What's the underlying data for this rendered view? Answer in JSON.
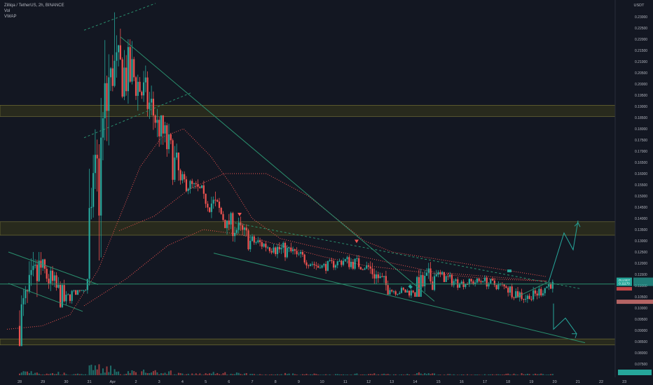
{
  "header": {
    "symbol_line": "Zilliqa / TetherUS, 2h, BINANCE",
    "indicator_1": "Vol",
    "indicator_2": "VWAP"
  },
  "price_scale": {
    "currency": "USDT",
    "labels": [
      "0.21500",
      "0.21000",
      "0.20500",
      "0.20000",
      "0.19500",
      "0.19000",
      "0.18500",
      "0.18000",
      "0.17500",
      "0.17000",
      "0.16500",
      "0.16000",
      "0.15500",
      "0.15000",
      "0.14500",
      "0.14000",
      "0.13500",
      "0.13000",
      "0.12500",
      "0.12000",
      "0.11500",
      "0.11000",
      "0.10500",
      "0.10000",
      "0.09500",
      "0.09000",
      "0.08500",
      "0.08000",
      "0.07500"
    ],
    "extra_labels": [
      "0.23000",
      "0.22500",
      "0.22000",
      "0.21500"
    ],
    "price_tag": "0.11170",
    "price_tag_left": "ZILUSDT",
    "vwap_tag": "0.10560"
  },
  "time_scale": {
    "labels": [
      "28",
      "29",
      "30",
      "31",
      "Apr",
      "2",
      "3",
      "4",
      "5",
      "6",
      "7",
      "8",
      "9",
      "10",
      "11",
      "12",
      "13",
      "14",
      "15",
      "16",
      "17",
      "18",
      "19",
      "20",
      "21",
      "22",
      "23"
    ]
  },
  "colors": {
    "background": "#131722",
    "up": "#26a69a",
    "down": "#ef5350",
    "zone_fill": "#3a3a1a",
    "zone_border": "#7d7a3a",
    "trendline": "#2a8f6e",
    "vwap": "#ef5350",
    "projection": "#26a69a"
  },
  "chart_data": {
    "type": "candlestick",
    "symbol": "Zilliqa / TetherUS",
    "interval": "2h",
    "exchange": "BINANCE",
    "y_range": [
      0.07,
      0.235
    ],
    "x_range_days": [
      "28",
      "23"
    ],
    "zones": [
      {
        "low": 0.1855,
        "high": 0.1905
      },
      {
        "low": 0.1325,
        "high": 0.1385
      },
      {
        "low": 0.0835,
        "high": 0.0862
      }
    ],
    "key_prices": {
      "last": 0.1117,
      "vwap_tag": 0.1056
    },
    "candles_by_day": [
      {
        "day": "28",
        "o": 0.092,
        "h": 0.125,
        "l": 0.083,
        "c": 0.118
      },
      {
        "day": "29",
        "o": 0.118,
        "h": 0.122,
        "l": 0.1,
        "c": 0.103
      },
      {
        "day": "30",
        "o": 0.103,
        "h": 0.108,
        "l": 0.098,
        "c": 0.113
      },
      {
        "day": "31",
        "o": 0.113,
        "h": 0.223,
        "l": 0.11,
        "c": 0.207
      },
      {
        "day": "Apr",
        "o": 0.207,
        "h": 0.232,
        "l": 0.186,
        "c": 0.203
      },
      {
        "day": "2",
        "o": 0.203,
        "h": 0.212,
        "l": 0.175,
        "c": 0.184
      },
      {
        "day": "3",
        "o": 0.184,
        "h": 0.186,
        "l": 0.154,
        "c": 0.157
      },
      {
        "day": "4",
        "o": 0.157,
        "h": 0.161,
        "l": 0.148,
        "c": 0.151
      },
      {
        "day": "5",
        "o": 0.151,
        "h": 0.153,
        "l": 0.132,
        "c": 0.139
      },
      {
        "day": "6",
        "o": 0.139,
        "h": 0.143,
        "l": 0.125,
        "c": 0.13
      },
      {
        "day": "7",
        "o": 0.13,
        "h": 0.133,
        "l": 0.122,
        "c": 0.127
      },
      {
        "day": "8",
        "o": 0.127,
        "h": 0.134,
        "l": 0.121,
        "c": 0.124
      },
      {
        "day": "9",
        "o": 0.124,
        "h": 0.126,
        "l": 0.116,
        "c": 0.118
      },
      {
        "day": "10",
        "o": 0.118,
        "h": 0.123,
        "l": 0.115,
        "c": 0.121
      },
      {
        "day": "11",
        "o": 0.121,
        "h": 0.128,
        "l": 0.117,
        "c": 0.119
      },
      {
        "day": "12",
        "o": 0.119,
        "h": 0.121,
        "l": 0.106,
        "c": 0.108
      },
      {
        "day": "13",
        "o": 0.108,
        "h": 0.111,
        "l": 0.104,
        "c": 0.107
      },
      {
        "day": "14",
        "o": 0.107,
        "h": 0.126,
        "l": 0.105,
        "c": 0.115
      },
      {
        "day": "15",
        "o": 0.115,
        "h": 0.117,
        "l": 0.108,
        "c": 0.111
      },
      {
        "day": "16",
        "o": 0.111,
        "h": 0.114,
        "l": 0.107,
        "c": 0.112
      },
      {
        "day": "17",
        "o": 0.112,
        "h": 0.116,
        "l": 0.108,
        "c": 0.109
      },
      {
        "day": "18",
        "o": 0.109,
        "h": 0.111,
        "l": 0.1,
        "c": 0.104
      },
      {
        "day": "19",
        "o": 0.104,
        "h": 0.113,
        "l": 0.103,
        "c": 0.1117
      }
    ]
  }
}
